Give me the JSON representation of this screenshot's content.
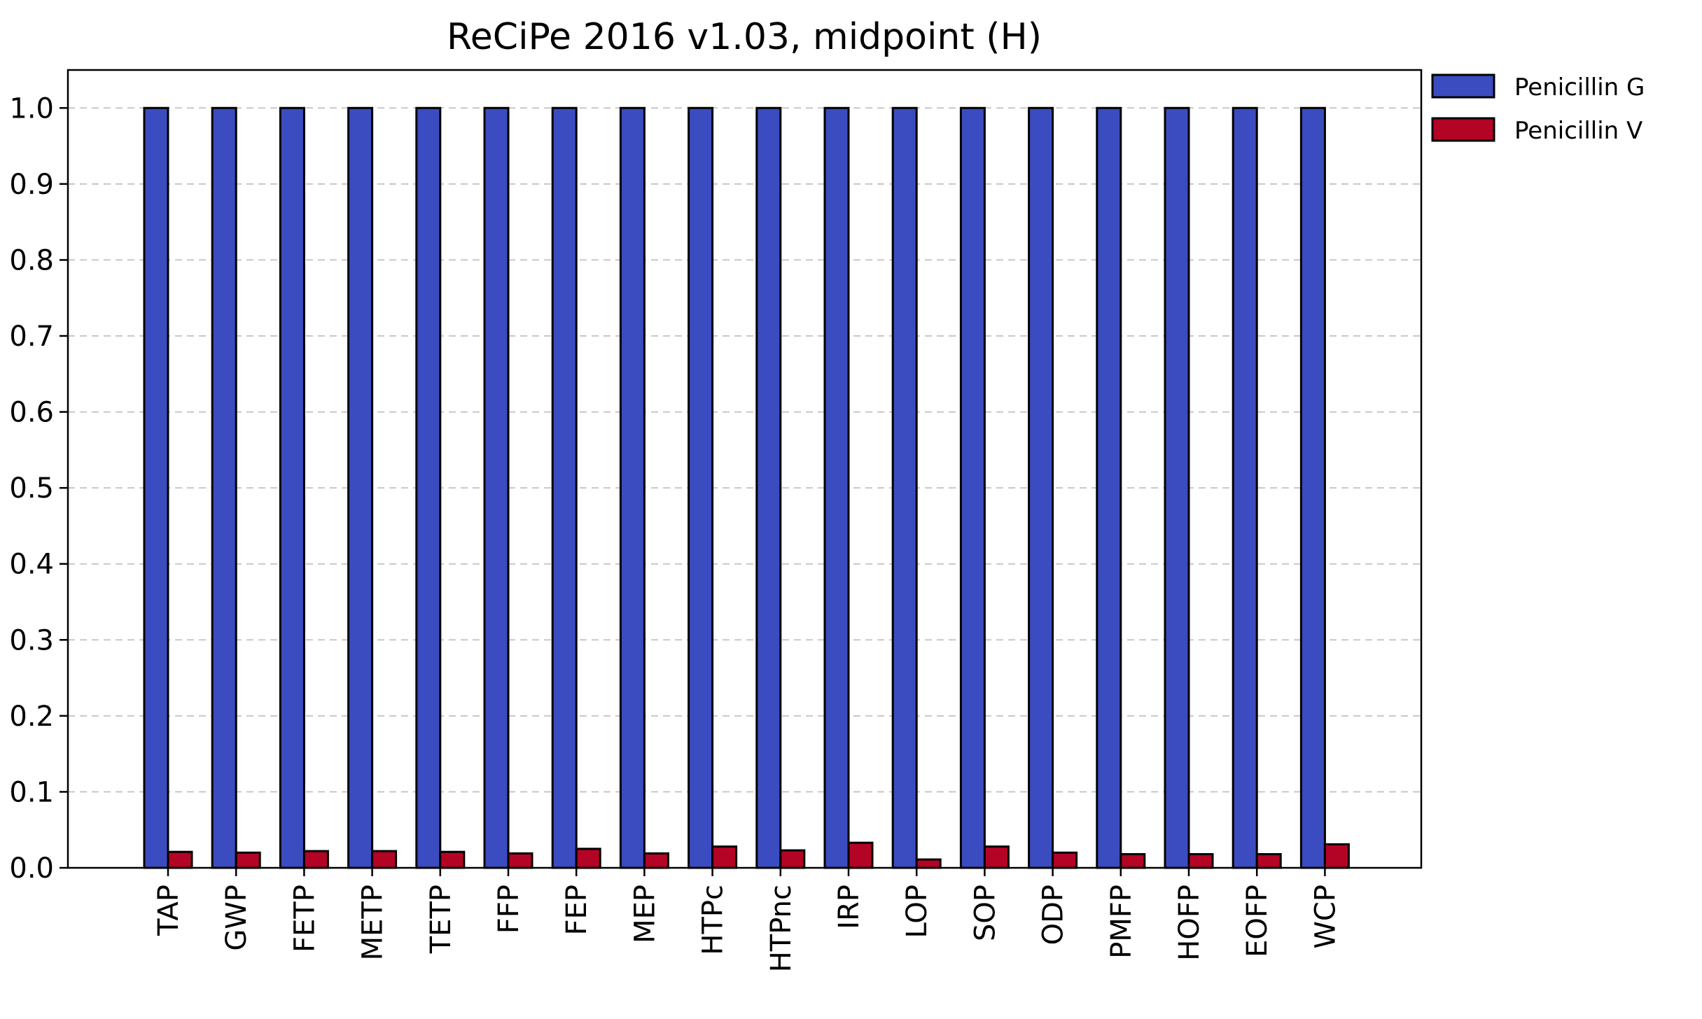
{
  "chart_data": {
    "type": "bar",
    "title": "ReCiPe 2016 v1.03, midpoint (H)",
    "xlabel": "",
    "ylabel": "",
    "categories": [
      "TAP",
      "GWP",
      "FETP",
      "METP",
      "TETP",
      "FFP",
      "FEP",
      "MEP",
      "HTPc",
      "HTPnc",
      "IRP",
      "LOP",
      "SOP",
      "ODP",
      "PMFP",
      "HOFP",
      "EOFP",
      "WCP"
    ],
    "series": [
      {
        "name": "Penicillin G",
        "color": "#3b4cc0",
        "values": [
          1.0,
          1.0,
          1.0,
          1.0,
          1.0,
          1.0,
          1.0,
          1.0,
          1.0,
          1.0,
          1.0,
          1.0,
          1.0,
          1.0,
          1.0,
          1.0,
          1.0,
          1.0
        ]
      },
      {
        "name": "Penicillin V",
        "color": "#b40426",
        "values": [
          0.021,
          0.02,
          0.022,
          0.022,
          0.021,
          0.019,
          0.025,
          0.019,
          0.028,
          0.023,
          0.033,
          0.011,
          0.028,
          0.02,
          0.018,
          0.018,
          0.018,
          0.031
        ]
      }
    ],
    "ylim": [
      0,
      1.05
    ],
    "yticks": [
      "0.0",
      "0.1",
      "0.2",
      "0.3",
      "0.4",
      "0.5",
      "0.6",
      "0.7",
      "0.8",
      "0.9",
      "1.0"
    ],
    "grid": "y-dashed",
    "legend_position": "outside-top-right",
    "xtick_rotation": "vertical"
  }
}
